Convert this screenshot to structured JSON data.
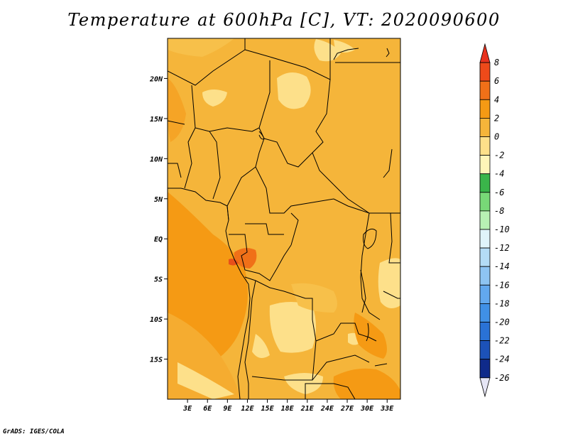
{
  "title": "Temperature at 600hPa [C], VT: 2020090600",
  "credit": "GrADS: IGES/COLA",
  "map": {
    "projection": "lat-lon",
    "lon_range_deg": [
      0,
      35
    ],
    "lat_range_deg": [
      -20,
      25
    ],
    "x_ticks": [
      "3E",
      "6E",
      "9E",
      "12E",
      "15E",
      "18E",
      "21E",
      "24E",
      "27E",
      "30E",
      "33E"
    ],
    "y_ticks": [
      "20N",
      "15N",
      "10N",
      "5N",
      "EQ",
      "5S",
      "10S",
      "15S"
    ],
    "field": "temperature",
    "unit": "C",
    "dominant_range": "0 to 2",
    "regions": [
      {
        "name": "warm-central-africa",
        "range": "0 to 2",
        "color": "#f5b53a"
      },
      {
        "name": "atlantic-warm-band",
        "range": "2 to 4",
        "color": "#f59a14"
      },
      {
        "name": "gabon-hotspot",
        "range": "4 to 6",
        "color": "#e8501a"
      },
      {
        "name": "sahara-cool-patches",
        "range": "-2 to 0",
        "color": "#fce08a"
      },
      {
        "name": "angola-zambia-plateau",
        "range": "-2 to 0",
        "color": "#fce08a"
      },
      {
        "name": "east-africa-highlands",
        "range": "-2 to 0",
        "color": "#fce08a"
      }
    ]
  },
  "colorbar": {
    "labels": [
      "8",
      "6",
      "4",
      "2",
      "0",
      "-2",
      "-4",
      "-6",
      "-8",
      "-10",
      "-12",
      "-14",
      "-16",
      "-18",
      "-20",
      "-22",
      "-24",
      "-26"
    ],
    "colors": {
      "above_8": "#e8321e",
      "6_to_8": "#ee4a1a",
      "4_to_6": "#f07018",
      "2_to_4": "#f59a14",
      "0_to_2": "#f5b53a",
      "-2_to_0": "#fde08a",
      "-4_to_-2": "#fff5b8",
      "-6_to_-4": "#3ab54a",
      "-8_to_-6": "#78d877",
      "-10_to_-8": "#b8f0b4",
      "-12_to_-10": "#e0f4fa",
      "-14_to_-12": "#b4dcf5",
      "-16_to_-14": "#8ec4f2",
      "-18_to_-16": "#62a8ee",
      "-20_to_-18": "#4090e6",
      "-22_to_-20": "#2a72d6",
      "-24_to_-22": "#1c52b8",
      "-26_to_-24": "#0f2a8a",
      "below_-26": "#e6e6f5"
    }
  }
}
